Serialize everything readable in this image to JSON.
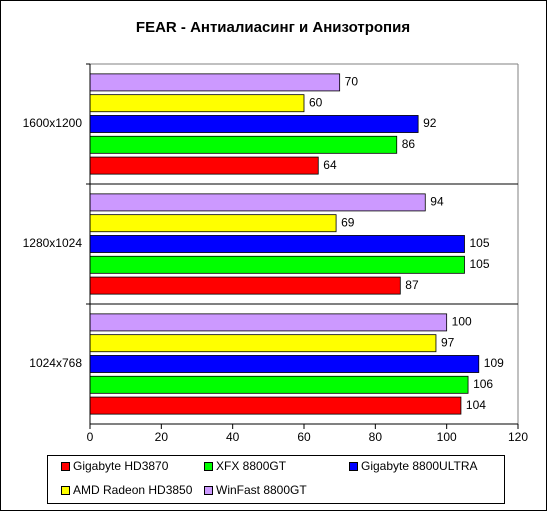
{
  "chart_data": {
    "type": "bar",
    "orientation": "horizontal",
    "title": "FEAR - Антиалиасинг и Анизотропия",
    "categories": [
      "1600x1200",
      "1280x1024",
      "1024x768"
    ],
    "series": [
      {
        "name": "Gigabyte HD3870",
        "color": "#ff0000",
        "values": [
          64,
          87,
          104
        ]
      },
      {
        "name": "XFX 8800GT",
        "color": "#00ff00",
        "values": [
          86,
          105,
          106
        ]
      },
      {
        "name": "Gigabyte 8800ULTRA",
        "color": "#0000ff",
        "values": [
          92,
          105,
          109
        ]
      },
      {
        "name": "AMD Radeon HD3850",
        "color": "#ffff00",
        "values": [
          60,
          69,
          97
        ]
      },
      {
        "name": "WinFast 8800GT",
        "color": "#cc99ff",
        "values": [
          70,
          94,
          100
        ]
      }
    ],
    "xlim": [
      0,
      120
    ],
    "xticks": [
      0,
      20,
      40,
      60,
      80,
      100,
      120
    ]
  }
}
